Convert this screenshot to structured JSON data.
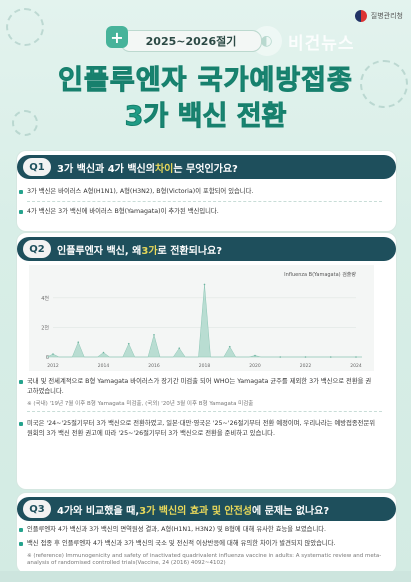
{
  "header": {
    "org": "질병관리청",
    "watermark": "비건뉴스",
    "season": "2025~2026절기",
    "title_line1": "인플루엔자 국가예방접종",
    "title_line2": "3가 백신 전환"
  },
  "q1": {
    "num": "Q1",
    "question_a": "3가 백신과 4가 백신의 ",
    "question_hl": "차이",
    "question_b": "는 무엇인가요?",
    "bullets": [
      "3가 백신은 바이러스 A형(H1N1), A형(H3N2), B형(Victoria)이 포함되어 있습니다.",
      "4가 백신은 3가 백신에 바이러스 B형(Yamagata)이 추가된 백신입니다."
    ]
  },
  "q2": {
    "num": "Q2",
    "question_a": "인플루엔자 백신, 왜 ",
    "question_hl": "3가",
    "question_b": "로 전환되나요?",
    "bullets": [
      "국내 및 전세계적으로 B형 Yamagata 바이러스가 장기간 미검출 되어 WHO는 Yamagata 균주를 제외한 3가 백신으로 전환을 권고하였습니다.",
      "미국은 '24~'25절기부터 3가 백신으로 전환하였고, 일본·대만·영국은 '25~'26절기부터 전환 예정이며, 우리나라는 예방접종전문위원회의 3가 백신 전환 권고에 따라 '25~'26절기부터 3가 백신으로 전환을 준비하고 있습니다."
    ],
    "note": "※ (국내) '19년 7월 이후 B형 Yamagata 미검출, (국외) '20년 3월 이후 B형 Yamagata 미검출"
  },
  "q3": {
    "num": "Q3",
    "question_a": "4가와 비교했을 때, ",
    "question_hl": "3가 백신의 효과 및 안전성",
    "question_b": "에 문제는 없나요?",
    "bullets": [
      "인플루엔자 4가 백신과 3가 백신의 면역원성 결과, A형(H1N1, H3N2) 및 B형에 대해 유사한 효능을 보였습니다.",
      "백신 접종 후 인플루엔자 4가 백신과 3가 백신의 국소 및 전신적 이상반응에 대해 유의한 차이가 발견되지 않았습니다."
    ],
    "reference_label": "※ (reference)",
    "reference": "Immunogenicity and safety of inactivated quadrivalent influenza vaccine in adults: A systematic review and meta-analysis of randomised controlled trials(Vaccine, 24 (2016) 4092~4102)"
  },
  "chart_data": {
    "type": "area",
    "legend": "Influenza B(Yamagata) 검출량",
    "ylabels": [
      "4천",
      "2천",
      "0"
    ],
    "ylim": [
      0,
      5000
    ],
    "xlabels": [
      "2012",
      "2014",
      "2016",
      "2018",
      "2020",
      "2022",
      "2024"
    ],
    "x": [
      2012,
      2013,
      2014,
      2015,
      2016,
      2017,
      2018,
      2019,
      2020,
      2021,
      2022,
      2023,
      2024
    ],
    "values": [
      200,
      1000,
      300,
      900,
      1500,
      600,
      4900,
      700,
      100,
      0,
      0,
      0,
      0
    ],
    "color": "#b9ddd2"
  }
}
